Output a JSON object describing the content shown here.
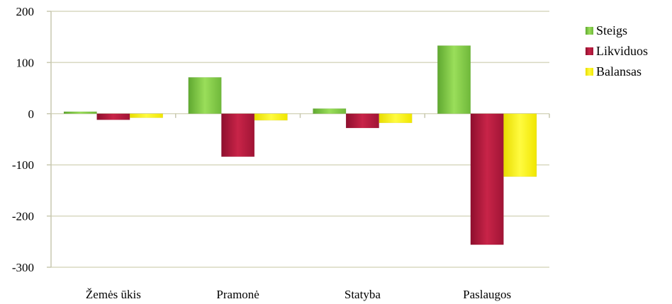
{
  "chart_data": {
    "type": "bar",
    "categories": [
      "Žemės ūkis",
      "Pramonė",
      "Statyba",
      "Paslaugos"
    ],
    "series": [
      {
        "name": "Steigs",
        "values": [
          4,
          71,
          10,
          133
        ],
        "color": "#7cc440"
      },
      {
        "name": "Likviduos",
        "values": [
          -12,
          -84,
          -28,
          -256
        ],
        "color": "#b0173c"
      },
      {
        "name": "Balansas",
        "values": [
          -8,
          -13,
          -18,
          -123
        ],
        "color": "#f5ef00"
      }
    ],
    "ylim": [
      -300,
      200
    ],
    "yticks": [
      200,
      100,
      0,
      -100,
      -200,
      -300
    ],
    "grid": true,
    "legend_position": "right",
    "title": "",
    "xlabel": "",
    "ylabel": ""
  }
}
